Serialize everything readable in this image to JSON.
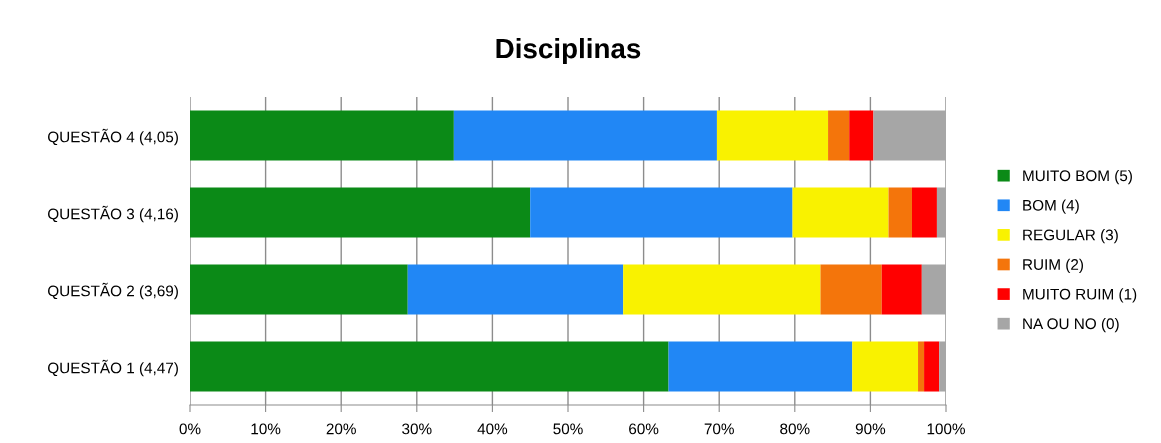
{
  "chart_data": {
    "type": "bar",
    "title": "Disciplinas",
    "orientation": "horizontal",
    "stacked": true,
    "categories": [
      "QUESTÃO 4 (4,05)",
      "QUESTÃO 3 (4,16)",
      "QUESTÃO 2 (3,69)",
      "QUESTÃO 1 (4,47)"
    ],
    "series": [
      {
        "name": "MUITO BOM (5)",
        "color": "#0b8a17",
        "values": [
          34.9,
          45.0,
          28.8,
          63.3
        ]
      },
      {
        "name": "BOM (4)",
        "color": "#2187f5",
        "values": [
          34.8,
          34.7,
          28.5,
          24.3
        ]
      },
      {
        "name": "REGULAR (3)",
        "color": "#f9f200",
        "values": [
          14.7,
          12.7,
          26.1,
          8.7
        ]
      },
      {
        "name": "RUIM (2)",
        "color": "#f4750b",
        "values": [
          2.8,
          3.1,
          8.1,
          0.8
        ]
      },
      {
        "name": "MUITO RUIM (1)",
        "color": "#ff0000",
        "values": [
          3.2,
          3.3,
          5.3,
          2.0
        ]
      },
      {
        "name": "NA OU NO (0)",
        "color": "#a6a6a6",
        "values": [
          9.6,
          1.2,
          3.2,
          0.9
        ]
      }
    ],
    "xlim": [
      0,
      100
    ],
    "xticks": [
      {
        "value": 0,
        "label": "0%"
      },
      {
        "value": 10,
        "label": "10%"
      },
      {
        "value": 20,
        "label": "20%"
      },
      {
        "value": 30,
        "label": "30%"
      },
      {
        "value": 40,
        "label": "40%"
      },
      {
        "value": 50,
        "label": "50%"
      },
      {
        "value": 60,
        "label": "60%"
      },
      {
        "value": 70,
        "label": "70%"
      },
      {
        "value": 80,
        "label": "80%"
      },
      {
        "value": 90,
        "label": "90%"
      },
      {
        "value": 100,
        "label": "100%"
      }
    ],
    "grid": "x",
    "legend": "right"
  }
}
